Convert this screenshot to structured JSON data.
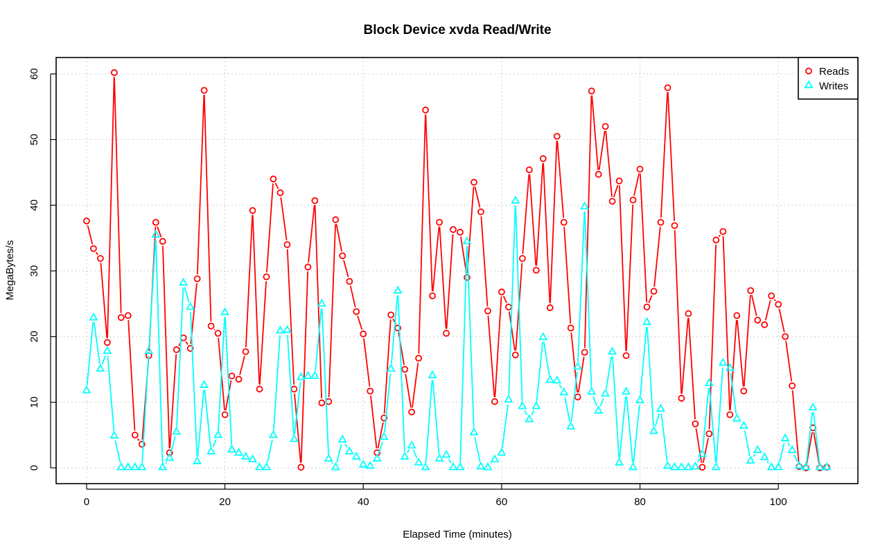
{
  "chart_data": {
    "type": "line",
    "title": "Block Device xvda Read/Write",
    "xlabel": "Elapsed Time (minutes)",
    "ylabel": "MegaBytes/s",
    "xlim": [
      -4.4,
      111.5
    ],
    "ylim": [
      -2.4,
      62.5
    ],
    "x_ticks": [
      0,
      20,
      40,
      60,
      80,
      100
    ],
    "y_ticks": [
      0,
      10,
      20,
      30,
      40,
      50,
      60
    ],
    "grid": true,
    "legend_position": "top-right",
    "x": [
      0,
      1,
      2,
      3,
      4,
      5,
      6,
      7,
      8,
      9,
      10,
      11,
      12,
      13,
      14,
      15,
      16,
      17,
      18,
      19,
      20,
      21,
      22,
      23,
      24,
      25,
      26,
      27,
      28,
      29,
      30,
      31,
      32,
      33,
      34,
      35,
      36,
      37,
      38,
      39,
      40,
      41,
      42,
      43,
      44,
      45,
      46,
      47,
      48,
      49,
      50,
      51,
      52,
      53,
      54,
      55,
      56,
      57,
      58,
      59,
      60,
      61,
      62,
      63,
      64,
      65,
      66,
      67,
      68,
      69,
      70,
      71,
      72,
      73,
      74,
      75,
      76,
      77,
      78,
      79,
      80,
      81,
      82,
      83,
      84,
      85,
      86,
      87,
      88,
      89,
      90,
      91,
      92,
      93,
      94,
      95,
      96,
      97,
      98,
      99,
      100,
      101,
      102,
      103,
      104,
      105,
      106,
      107
    ],
    "series": [
      {
        "name": "Reads",
        "color": "#ff0000",
        "marker": "circle",
        "values": [
          37.6,
          33.4,
          31.9,
          19.1,
          60.2,
          22.9,
          23.2,
          5.0,
          3.6,
          17.1,
          37.4,
          34.5,
          2.3,
          18.0,
          19.8,
          18.2,
          28.8,
          57.5,
          21.6,
          20.5,
          8.1,
          14.0,
          13.5,
          17.7,
          39.2,
          12.0,
          29.1,
          44.0,
          41.9,
          34.0,
          12.0,
          0.1,
          30.6,
          40.7,
          9.9,
          10.1,
          37.8,
          32.3,
          28.4,
          23.8,
          20.4,
          11.7,
          2.3,
          7.6,
          23.3,
          21.3,
          15.0,
          8.5,
          16.7,
          54.5,
          26.2,
          37.4,
          20.5,
          36.3,
          35.9,
          29.0,
          43.5,
          39.0,
          23.9,
          10.1,
          26.8,
          24.5,
          17.2,
          31.9,
          45.4,
          30.1,
          47.1,
          24.4,
          50.5,
          37.4,
          21.3,
          10.8,
          17.6,
          57.4,
          44.7,
          52.0,
          40.6,
          43.7,
          17.1,
          40.8,
          45.5,
          24.5,
          26.9,
          37.4,
          57.9,
          36.9,
          10.6,
          23.5,
          6.7,
          0.1,
          5.2,
          34.7,
          36.0,
          8.1,
          23.2,
          11.7,
          27.0,
          22.5,
          21.8,
          26.2,
          24.9,
          20.0,
          12.5,
          0.2,
          0.0,
          6.1,
          0.0,
          0.1
        ]
      },
      {
        "name": "Writes",
        "color": "#00ffff",
        "marker": "triangle",
        "values": [
          11.8,
          22.9,
          15.1,
          17.8,
          4.9,
          0.1,
          0.1,
          0.1,
          0.1,
          17.8,
          35.5,
          0.1,
          1.5,
          5.5,
          28.2,
          24.5,
          1.0,
          12.6,
          2.5,
          5.0,
          23.7,
          2.8,
          2.3,
          1.7,
          1.3,
          0.1,
          0.1,
          5.0,
          20.9,
          21.0,
          4.4,
          13.8,
          14.0,
          14.0,
          25.0,
          1.4,
          0.1,
          4.3,
          2.5,
          1.7,
          0.5,
          0.3,
          1.4,
          4.7,
          15.1,
          27.0,
          1.7,
          3.4,
          0.8,
          0.1,
          14.1,
          1.4,
          2.0,
          0.1,
          0.1,
          34.5,
          5.4,
          0.2,
          0.1,
          1.3,
          2.3,
          10.4,
          40.7,
          9.4,
          7.4,
          9.4,
          19.9,
          13.4,
          13.3,
          11.5,
          6.3,
          15.4,
          39.8,
          11.6,
          8.7,
          11.3,
          17.7,
          0.8,
          11.6,
          0.1,
          10.3,
          22.2,
          5.6,
          9.0,
          0.3,
          0.1,
          0.1,
          0.1,
          0.2,
          2.1,
          12.9,
          0.1,
          16.0,
          15.2,
          7.5,
          6.4,
          1.1,
          2.7,
          1.6,
          0.1,
          0.1,
          4.5,
          2.7,
          0.3,
          0.1,
          9.2,
          0.1,
          0.1
        ]
      }
    ]
  }
}
